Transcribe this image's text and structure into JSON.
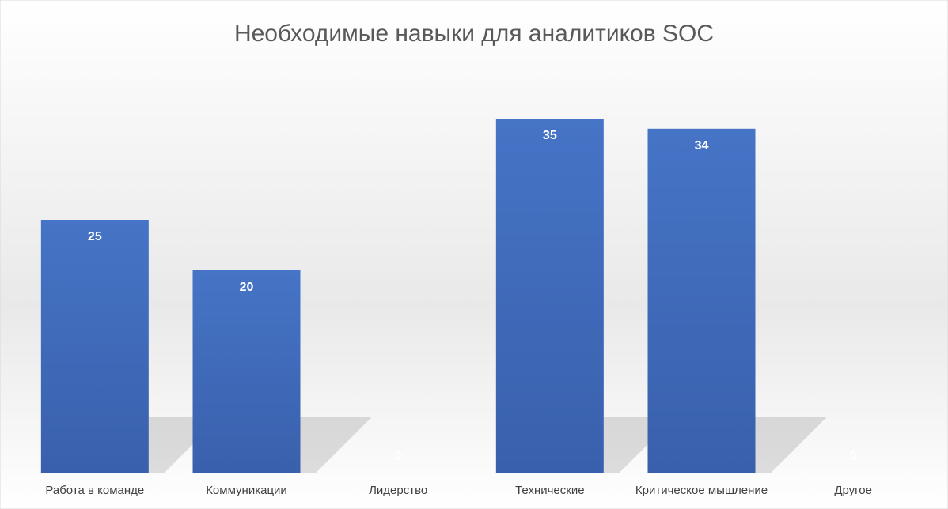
{
  "chart_data": {
    "type": "bar",
    "title": "Необходимые навыки для аналитиков SOC",
    "categories": [
      "Работа в команде",
      "Коммуникации",
      "Лидерство",
      "Технические",
      "Критическое мышление",
      "Другое"
    ],
    "values": [
      25,
      20,
      0,
      35,
      34,
      0
    ],
    "color": "#4472c4",
    "ylim": [
      0,
      40
    ]
  }
}
